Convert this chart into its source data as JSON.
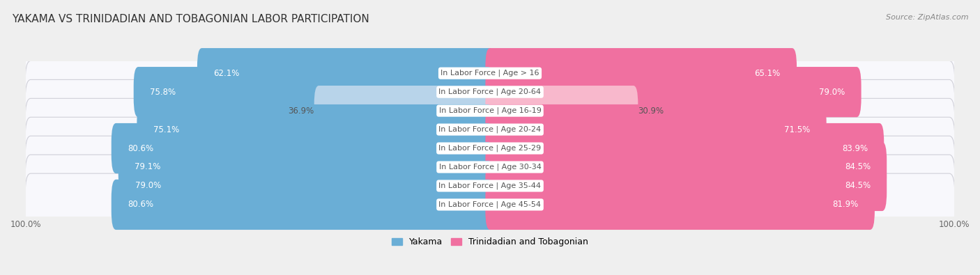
{
  "title": "YAKAMA VS TRINIDADIAN AND TOBAGONIAN LABOR PARTICIPATION",
  "source": "Source: ZipAtlas.com",
  "categories": [
    "In Labor Force | Age > 16",
    "In Labor Force | Age 20-64",
    "In Labor Force | Age 16-19",
    "In Labor Force | Age 20-24",
    "In Labor Force | Age 25-29",
    "In Labor Force | Age 30-34",
    "In Labor Force | Age 35-44",
    "In Labor Force | Age 45-54"
  ],
  "yakama_values": [
    62.1,
    75.8,
    36.9,
    75.1,
    80.6,
    79.1,
    79.0,
    80.6
  ],
  "trini_values": [
    65.1,
    79.0,
    30.9,
    71.5,
    83.9,
    84.5,
    84.5,
    81.9
  ],
  "yakama_color": "#6aaed6",
  "yakama_light_color": "#b8d4ea",
  "trini_color": "#f070a0",
  "trini_light_color": "#f8b8cc",
  "bg_color": "#efefef",
  "row_bg_color": "#f8f8fc",
  "row_border_color": "#d0d0d8",
  "label_color_white": "#ffffff",
  "label_color_dark": "#555555",
  "max_value": 100.0,
  "bar_height": 0.68,
  "title_fontsize": 11,
  "label_fontsize": 8.5,
  "category_fontsize": 8,
  "legend_fontsize": 9,
  "axis_label_fontsize": 8.5
}
